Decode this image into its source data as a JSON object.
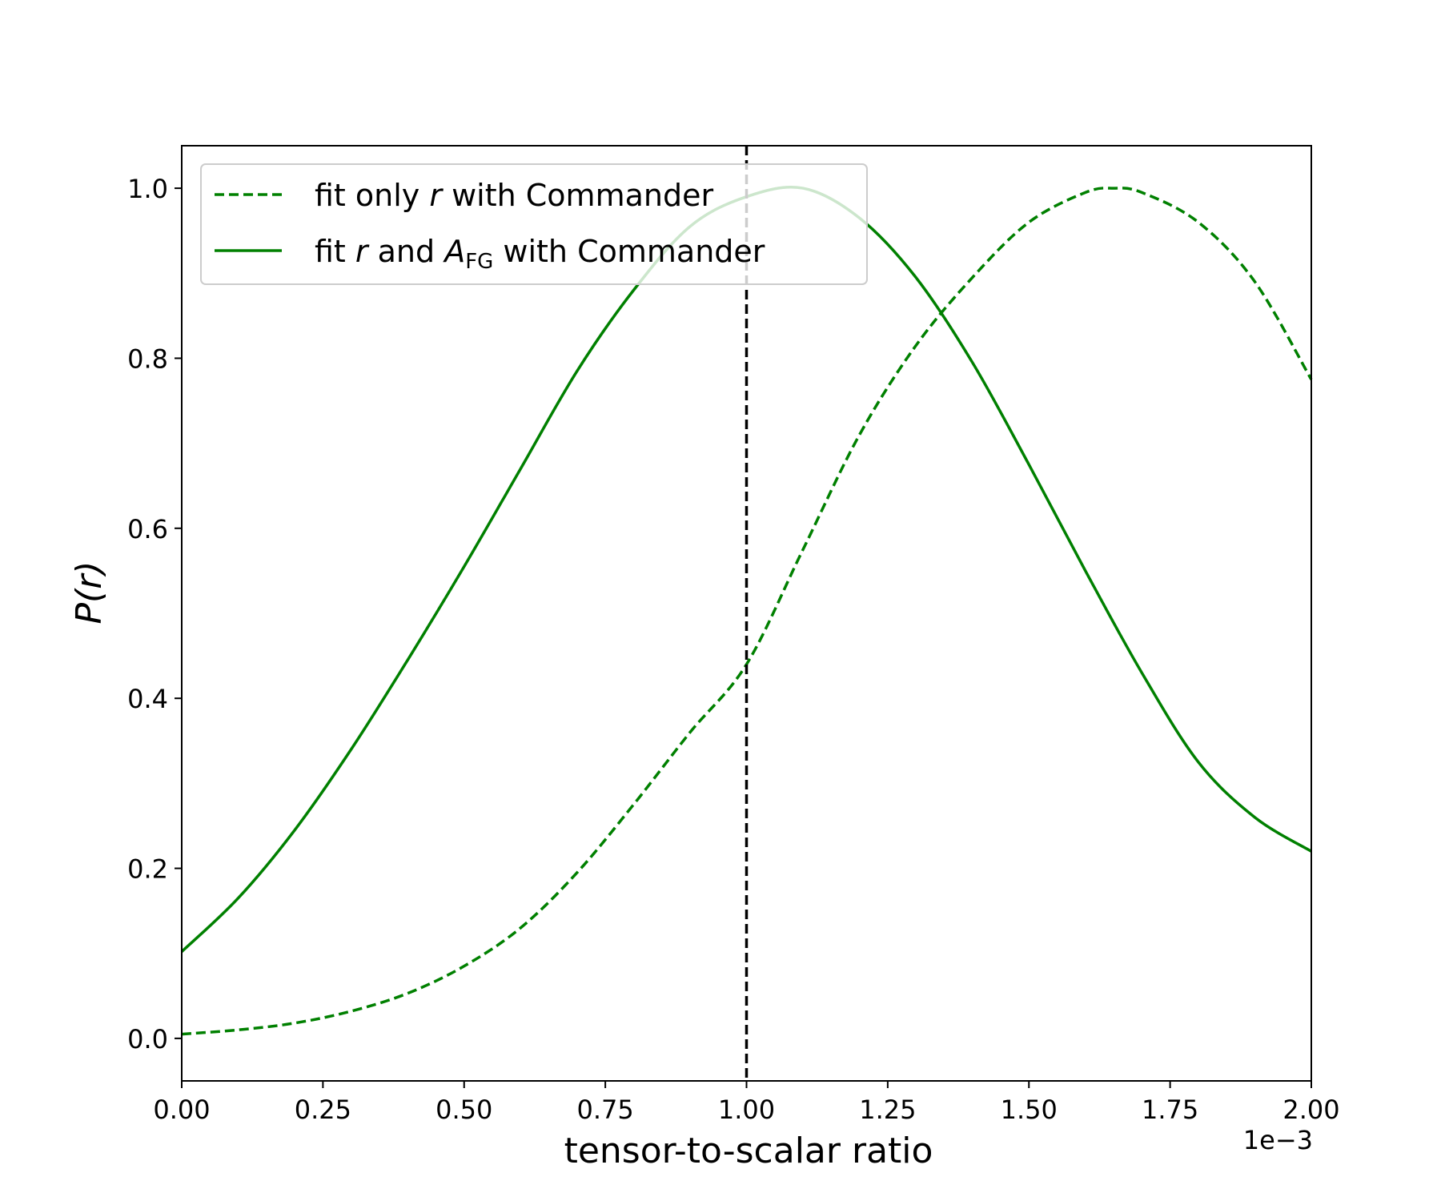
{
  "chart_data": {
    "type": "line",
    "xlabel": "tensor-to-scalar ratio",
    "ylabel": "P(r)",
    "x_offset_label": "1e−3",
    "xlim": [
      0.0,
      2.0
    ],
    "ylim": [
      -0.05,
      1.05
    ],
    "xticks": [
      0.0,
      0.25,
      0.5,
      0.75,
      1.0,
      1.25,
      1.5,
      1.75,
      2.0
    ],
    "xtick_labels": [
      "0.00",
      "0.25",
      "0.50",
      "0.75",
      "1.00",
      "1.25",
      "1.50",
      "1.75",
      "2.00"
    ],
    "yticks": [
      0.0,
      0.2,
      0.4,
      0.6,
      0.8,
      1.0
    ],
    "ytick_labels": [
      "0.0",
      "0.2",
      "0.4",
      "0.6",
      "0.8",
      "1.0"
    ],
    "grid": false,
    "legend_position": "top-left",
    "series": [
      {
        "name": "fit only r with Commander",
        "legend": {
          "before": "fit only ",
          "var": "r",
          "after": " with Commander"
        },
        "style": "dashed",
        "color": "#008000",
        "x": [
          0.0,
          0.1,
          0.2,
          0.3,
          0.4,
          0.5,
          0.6,
          0.7,
          0.8,
          0.9,
          1.0,
          1.1,
          1.2,
          1.3,
          1.4,
          1.5,
          1.6,
          1.65,
          1.7,
          1.8,
          1.9,
          2.0
        ],
        "y": [
          0.005,
          0.01,
          0.018,
          0.032,
          0.053,
          0.085,
          0.13,
          0.195,
          0.275,
          0.36,
          0.44,
          0.575,
          0.71,
          0.815,
          0.895,
          0.96,
          0.995,
          1.0,
          0.995,
          0.96,
          0.89,
          0.775
        ]
      },
      {
        "name": "fit r and A_FG with Commander",
        "legend": {
          "before": "fit ",
          "var": "r",
          "middle": " and ",
          "var2": "A",
          "sub": "FG",
          "after": " with Commander"
        },
        "style": "solid",
        "color": "#008000",
        "x": [
          0.0,
          0.1,
          0.2,
          0.3,
          0.4,
          0.5,
          0.6,
          0.7,
          0.8,
          0.9,
          1.0,
          1.1,
          1.2,
          1.3,
          1.4,
          1.5,
          1.6,
          1.7,
          1.8,
          1.9,
          2.0
        ],
        "y": [
          0.102,
          0.165,
          0.245,
          0.34,
          0.445,
          0.555,
          0.67,
          0.785,
          0.88,
          0.955,
          0.99,
          1.0,
          0.965,
          0.895,
          0.795,
          0.675,
          0.55,
          0.43,
          0.325,
          0.26,
          0.22
        ]
      }
    ],
    "reference_line": {
      "x": 1.0,
      "style": "dashed",
      "color": "#000000"
    }
  }
}
